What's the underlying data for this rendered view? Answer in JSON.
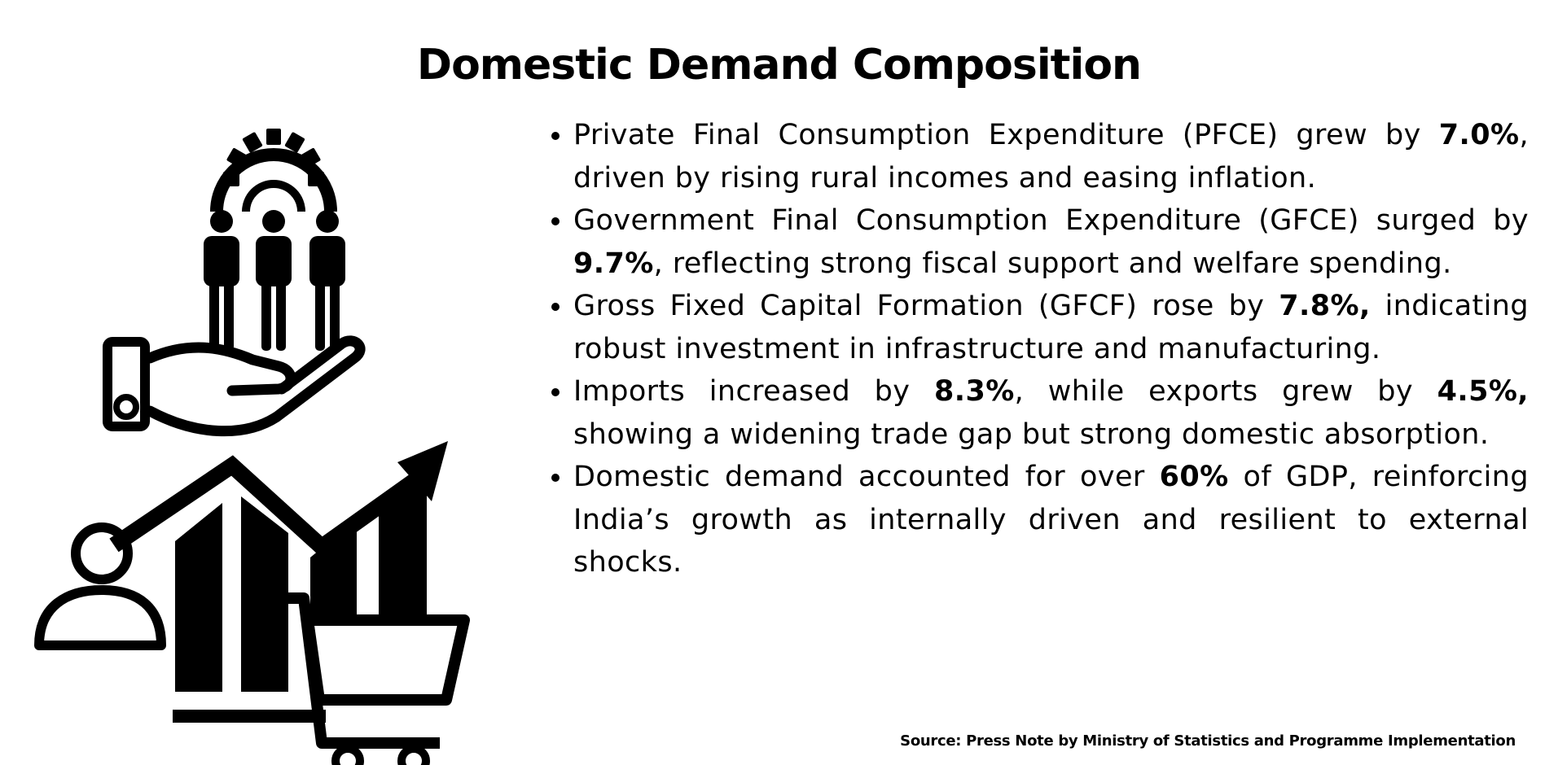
{
  "title": "Domestic Demand Composition",
  "bullets": [
    {
      "pre": "Private Final Consumption Expenditure (PFCE) grew by ",
      "value": "7.0%",
      "post": ", driven by rising rural incomes and easing inflation."
    },
    {
      "pre": "Government Final Consumption Expenditure (GFCE) surged by ",
      "value": "9.7%",
      "post": ", reflecting strong fiscal support and welfare spending."
    },
    {
      "pre": "Gross Fixed Capital Formation (GFCF) rose by ",
      "value": "7.8%,",
      "post": " indicating robust investment in infrastructure and manufacturing."
    },
    {
      "pre": "Imports increased by ",
      "value": "8.3%",
      "mid": ", while exports grew by ",
      "value2": "4.5%,",
      "post": " showing a widening trade gap but strong domestic absorption."
    },
    {
      "pre": "Domestic demand accounted for over ",
      "value": "60%",
      "post": " of GDP, reinforcing India’s growth as internally driven and resilient to external shocks."
    }
  ],
  "source": "Source: Press Note by Ministry of Statistics and Programme Implementation",
  "icons": [
    "gear-icon",
    "people-icon",
    "hand-icon",
    "bar-chart-icon",
    "trend-arrow-icon",
    "person-icon",
    "shopping-cart-icon"
  ]
}
